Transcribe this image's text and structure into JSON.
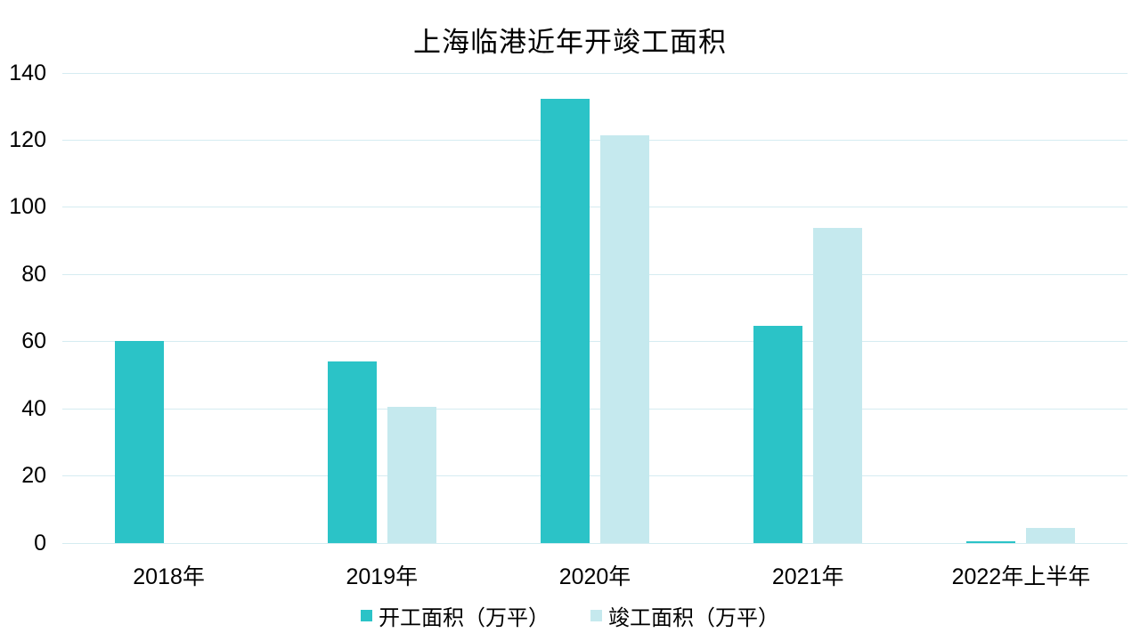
{
  "chart_data": {
    "type": "bar",
    "title": "上海临港近年开竣工面积",
    "categories": [
      "2018年",
      "2019年",
      "2020年",
      "2021年",
      "2022年上半年"
    ],
    "series": [
      {
        "name": "开工面积（万平）",
        "color": "#2BC3C7",
        "values": [
          60.3,
          54.2,
          132.4,
          64.8,
          0.6
        ]
      },
      {
        "name": "竣工面积（万平）",
        "color": "#C5E9EE",
        "values": [
          null,
          40.6,
          121.4,
          93.9,
          4.4
        ]
      }
    ],
    "xlabel": "",
    "ylabel": "",
    "ylim": [
      0,
      140
    ],
    "ytick_step": 20,
    "grid": true,
    "gridline_color": "#D5ECF1",
    "legend_position": "bottom",
    "background_color": "#FFFFFF",
    "text_color": "#000000"
  }
}
